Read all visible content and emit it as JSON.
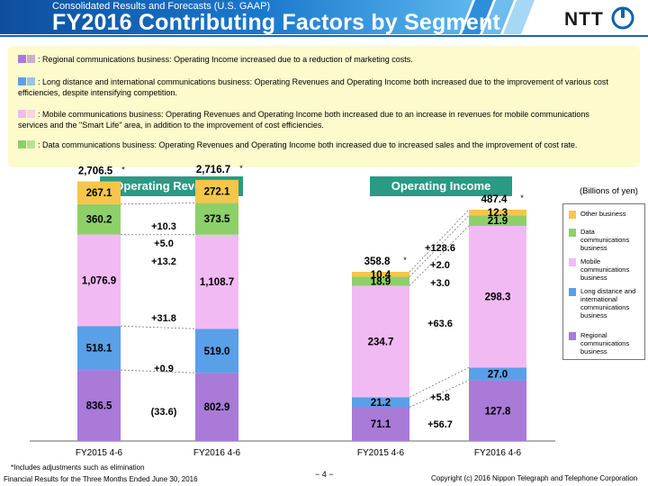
{
  "header": {
    "subtitle": "Consolidated Results and Forecasts (U.S. GAAP)",
    "title": "FY2016 Contributing Factors by Segment",
    "logo_text": "NTT"
  },
  "notes": [
    {
      "segment": "Regional",
      "text": ": Regional communications business: Operating Income increased due to a reduction of marketing costs."
    },
    {
      "segment": "Long distance",
      "text": ": Long distance and international communications business: Operating Revenues and Operating Income both increased due to the improvement of various cost efficiencies, despite intensifying competition."
    },
    {
      "segment": "Mobile",
      "text": ": Mobile communications business: Operating Revenues and Operating Income both increased due to an increase in revenues for mobile communications services and the \"Smart Life\" area, in addition to the improvement of cost efficiencies."
    },
    {
      "segment": "Data",
      "text": ": Data communications business: Operating Revenues and Operating Income both increased due to increased sales and the improvement of cost rate."
    }
  ],
  "unit_label": "(Billions of yen)",
  "legend": [
    {
      "label": "Other business",
      "color": "#f5c64a"
    },
    {
      "label": "Data communications business",
      "color": "#8dd06a"
    },
    {
      "label": "Mobile communications business",
      "color": "#f2baf2"
    },
    {
      "label": "Long distance and international communications business",
      "color": "#5aa0e8"
    },
    {
      "label": "Regional communications business",
      "color": "#a97ad8"
    }
  ],
  "chart_data": [
    {
      "type": "bar",
      "title": "Operating Revenues",
      "categories": [
        "FY2015 4-6",
        "FY2016 4-6"
      ],
      "series": [
        {
          "name": "Regional communications business",
          "color": "#a97ad8",
          "values": [
            836.5,
            802.9
          ],
          "labels": [
            "836.5",
            "802.9"
          ],
          "change": "(33.6)"
        },
        {
          "name": "Long distance and international communications business",
          "color": "#5aa0e8",
          "values": [
            518.1,
            519.0
          ],
          "labels": [
            "518.1",
            "519.0"
          ],
          "change": "+0.9"
        },
        {
          "name": "Mobile communications business",
          "color": "#f2baf2",
          "values": [
            1076.9,
            1108.7
          ],
          "labels": [
            "1,076.9",
            "1,108.7"
          ],
          "change": "+31.8"
        },
        {
          "name": "Data communications business",
          "color": "#8dd06a",
          "values": [
            360.2,
            373.5
          ],
          "labels": [
            "360.2",
            "373.5"
          ],
          "change": "+13.2"
        },
        {
          "name": "Other business",
          "color": "#f5c64a",
          "values": [
            267.1,
            272.1
          ],
          "labels": [
            "267.1",
            "272.1"
          ],
          "change": "+5.0"
        }
      ],
      "totals": [
        "2,706.5",
        "2,716.7"
      ],
      "total_change": "+10.3"
    },
    {
      "type": "bar",
      "title": "Operating Income",
      "categories": [
        "FY2015 4-6",
        "FY2016 4-6"
      ],
      "series": [
        {
          "name": "Regional communications business",
          "color": "#a97ad8",
          "values": [
            71.1,
            127.8
          ],
          "labels": [
            "71.1",
            "127.8"
          ],
          "change": "+56.7"
        },
        {
          "name": "Long distance and international communications business",
          "color": "#5aa0e8",
          "values": [
            21.2,
            27.0
          ],
          "labels": [
            "21.2",
            "27.0"
          ],
          "change": "+5.8"
        },
        {
          "name": "Mobile communications business",
          "color": "#f2baf2",
          "values": [
            234.7,
            298.3
          ],
          "labels": [
            "234.7",
            "298.3"
          ],
          "change": "+63.6"
        },
        {
          "name": "Data communications business",
          "color": "#8dd06a",
          "values": [
            18.9,
            21.9
          ],
          "labels": [
            "18.9",
            "21.9"
          ],
          "change": "+3.0"
        },
        {
          "name": "Other business",
          "color": "#f5c64a",
          "values": [
            10.4,
            12.3
          ],
          "labels": [
            "10.4",
            "12.3"
          ],
          "change": "+2.0"
        }
      ],
      "totals": [
        "358.8",
        "487.4"
      ],
      "total_change": "+128.6"
    }
  ],
  "total_mark": "*",
  "footnote": "*Includes adjustments such as elimination",
  "footer": {
    "left": "Financial Results for the Three Months Ended June 30, 2016",
    "page": "− 4 −",
    "copyright": "Copyright (c) 2016 Nippon Telegraph and Telephone Corporation"
  }
}
